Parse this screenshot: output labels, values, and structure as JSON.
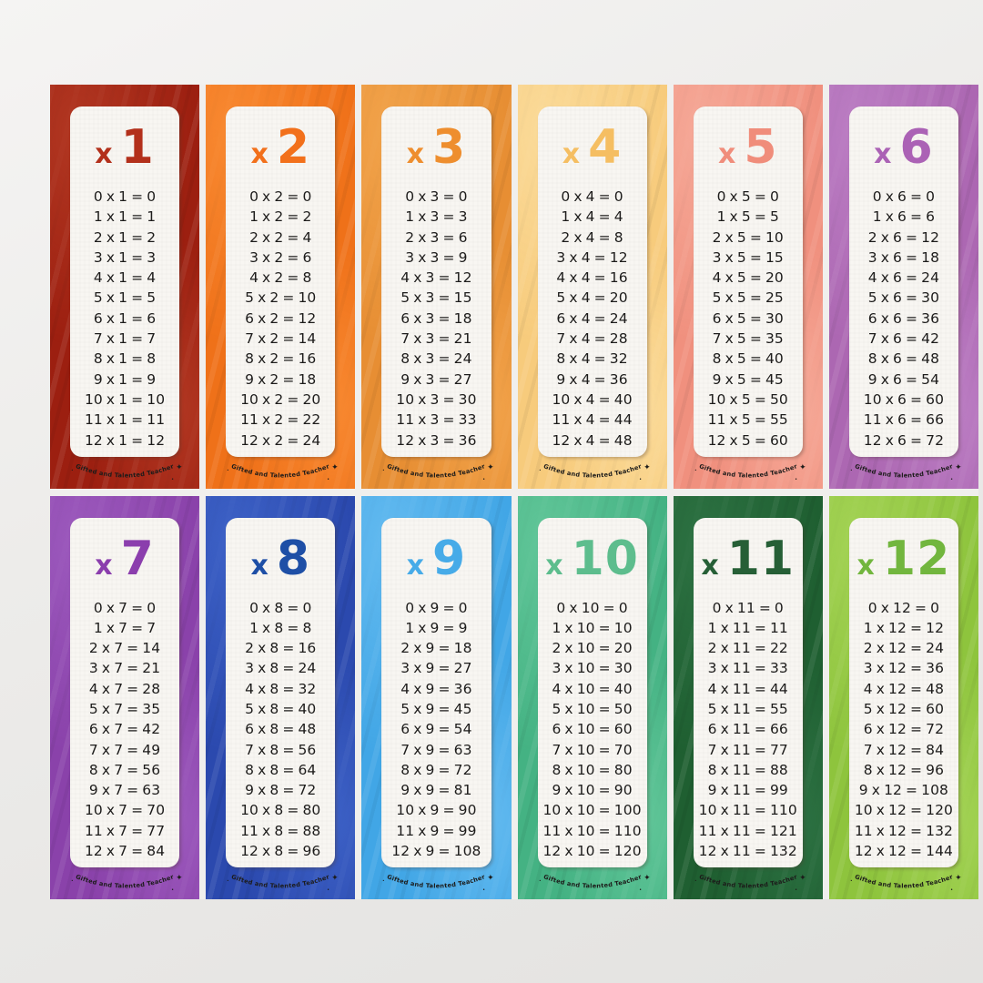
{
  "page": {
    "background_top": "#f5f4f3",
    "background_bottom": "#e3e2e0",
    "sheet_gap_color": "#f0efed",
    "card_paper_color": "#f8f6f2",
    "equation_text_color": "#1d1c1b"
  },
  "branding": {
    "text": "Gifted and Talented Teacher",
    "sparkle": "✦",
    "dot": "•"
  },
  "cards": [
    {
      "symbol": "x",
      "number": "1",
      "colors": {
        "bg": "#9c1f10",
        "bg2": "#b43a24",
        "accent": "#b3301b"
      },
      "rows": [
        "0 x 1 = 0",
        "1 x 1 = 1",
        "2 x 1 = 2",
        "3 x 1 = 3",
        "4 x 1 = 4",
        "5 x 1 = 5",
        "6 x 1 = 6",
        "7 x 1 = 7",
        "8 x 1 = 8",
        "9 x 1 = 9",
        "10 x 1 = 10",
        "11 x 1 = 11",
        "12 x 1 = 12"
      ]
    },
    {
      "symbol": "x",
      "number": "2",
      "colors": {
        "bg": "#ef7119",
        "bg2": "#f98c34",
        "accent": "#f2701b"
      },
      "rows": [
        "0 x 2 = 0",
        "1 x 2 = 2",
        "2 x 2 = 4",
        "3 x 2 = 6",
        "4 x 2 = 8",
        "5 x 2 = 10",
        "6 x 2 = 12",
        "7 x 2 = 14",
        "8 x 2 = 16",
        "9 x 2 = 18",
        "10 x 2 = 20",
        "11 x 2 = 22",
        "12 x 2 = 24"
      ]
    },
    {
      "symbol": "x",
      "number": "3",
      "colors": {
        "bg": "#e78e33",
        "bg2": "#f2a54d",
        "accent": "#ee8e2e"
      },
      "rows": [
        "0 x 3 = 0",
        "1 x 3 = 3",
        "2 x 3 = 6",
        "3 x 3 = 9",
        "4 x 3 = 12",
        "5 x 3 = 15",
        "6 x 3 = 18",
        "7 x 3 = 21",
        "8 x 3 = 24",
        "9 x 3 = 27",
        "10 x 3 = 30",
        "11 x 3 = 33",
        "12 x 3 = 36"
      ]
    },
    {
      "symbol": "x",
      "number": "4",
      "colors": {
        "bg": "#f7cb7c",
        "bg2": "#fbdc9c",
        "accent": "#f5be62"
      },
      "rows": [
        "0 x 4 = 0",
        "1 x 4 = 4",
        "2 x 4 = 8",
        "3 x 4 = 12",
        "4 x 4 = 16",
        "5 x 4 = 20",
        "6 x 4 = 24",
        "7 x 4 = 28",
        "8 x 4 = 32",
        "9 x 4 = 36",
        "10 x 4 = 40",
        "11 x 4 = 44",
        "12 x 4 = 48"
      ]
    },
    {
      "symbol": "x",
      "number": "5",
      "colors": {
        "bg": "#f0907e",
        "bg2": "#f6ab9a",
        "accent": "#f08d7b"
      },
      "rows": [
        "0 x 5 = 0",
        "1 x 5 = 5",
        "2 x 5 = 10",
        "3 x 5 = 15",
        "4 x 5 = 20",
        "5 x 5 = 25",
        "6 x 5 = 30",
        "7 x 5 = 35",
        "8 x 5 = 40",
        "9 x 5 = 45",
        "10 x 5 = 50",
        "11 x 5 = 55",
        "12 x 5 = 60"
      ]
    },
    {
      "symbol": "x",
      "number": "6",
      "colors": {
        "bg": "#ac67b2",
        "bg2": "#bd80c5",
        "accent": "#ab62b5"
      },
      "rows": [
        "0 x 6 = 0",
        "1 x 6 = 6",
        "2 x 6 = 12",
        "3 x 6 = 18",
        "4 x 6 = 24",
        "5 x 6 = 30",
        "6 x 6 = 36",
        "7 x 6 = 42",
        "8 x 6 = 48",
        "9 x 6 = 54",
        "10 x 6 = 60",
        "11 x 6 = 66",
        "12 x 6 = 72"
      ]
    },
    {
      "symbol": "x",
      "number": "7",
      "colors": {
        "bg": "#8a42aa",
        "bg2": "#9e5cbf",
        "accent": "#8b3ead"
      },
      "rows": [
        "0 x 7 = 0",
        "1 x 7 = 7",
        "2 x 7 = 14",
        "3 x 7 = 21",
        "4 x 7 = 28",
        "5 x 7 = 35",
        "6 x 7 = 42",
        "7 x 7 = 49",
        "8 x 7 = 56",
        "9 x 7 = 63",
        "10 x 7 = 70",
        "11 x 7 = 77",
        "12 x 7 = 84"
      ]
    },
    {
      "symbol": "x",
      "number": "8",
      "colors": {
        "bg": "#2b49ae",
        "bg2": "#3f64c9",
        "accent": "#1e4fa6"
      },
      "rows": [
        "0 x 8 = 0",
        "1 x 8 = 8",
        "2 x 8 = 16",
        "3 x 8 = 24",
        "4 x 8 = 32",
        "5 x 8 = 40",
        "6 x 8 = 48",
        "7 x 8 = 56",
        "8 x 8 = 64",
        "9 x 8 = 72",
        "10 x 8 = 80",
        "11 x 8 = 88",
        "12 x 8 = 96"
      ]
    },
    {
      "symbol": "x",
      "number": "9",
      "colors": {
        "bg": "#41a6e6",
        "bg2": "#66bcf1",
        "accent": "#47abe8"
      },
      "rows": [
        "0 x 9 = 0",
        "1 x 9 = 9",
        "2 x 9 = 18",
        "3 x 9 = 27",
        "4 x 9 = 36",
        "5 x 9 = 45",
        "6 x 9 = 54",
        "7 x 9 = 63",
        "8 x 9 = 72",
        "9 x 9 = 81",
        "10 x 9 = 90",
        "11 x 9 = 99",
        "12 x 9 = 108"
      ]
    },
    {
      "symbol": "x",
      "number": "10",
      "colors": {
        "bg": "#44b283",
        "bg2": "#64c89b",
        "accent": "#5dbd8d"
      },
      "rows": [
        "0 x 10 = 0",
        "1 x 10 = 10",
        "2 x 10 = 20",
        "3 x 10 = 30",
        "4 x 10 = 40",
        "5 x 10 = 50",
        "6 x 10 = 60",
        "7 x 10 = 70",
        "8 x 10 = 80",
        "9 x 10 = 90",
        "10 x 10 = 100",
        "11 x 10 = 110",
        "12 x 10 = 120"
      ]
    },
    {
      "symbol": "x",
      "number": "11",
      "colors": {
        "bg": "#1f5f31",
        "bg2": "#2e7344",
        "accent": "#265f36"
      },
      "rows": [
        "0 x 11 = 0",
        "1 x 11 = 11",
        "2 x 11 = 22",
        "3 x 11 = 33",
        "4 x 11 = 44",
        "5 x 11 = 55",
        "6 x 11 = 66",
        "7 x 11 = 77",
        "8 x 11 = 88",
        "9 x 11 = 99",
        "10 x 11 = 110",
        "11 x 11 = 121",
        "12 x 11 = 132"
      ]
    },
    {
      "symbol": "x",
      "number": "12",
      "colors": {
        "bg": "#8ec43d",
        "bg2": "#a5d457",
        "accent": "#72b63e"
      },
      "rows": [
        "0 x 12 = 0",
        "1 x 12 = 12",
        "2 x 12 = 24",
        "3 x 12 = 36",
        "4 x 12 = 48",
        "5 x 12 = 60",
        "6 x 12 = 72",
        "7 x 12 = 84",
        "8 x 12 = 96",
        "9 x 12 = 108",
        "10 x 12 = 120",
        "11 x 12 = 132",
        "12 x 12 = 144"
      ]
    }
  ]
}
